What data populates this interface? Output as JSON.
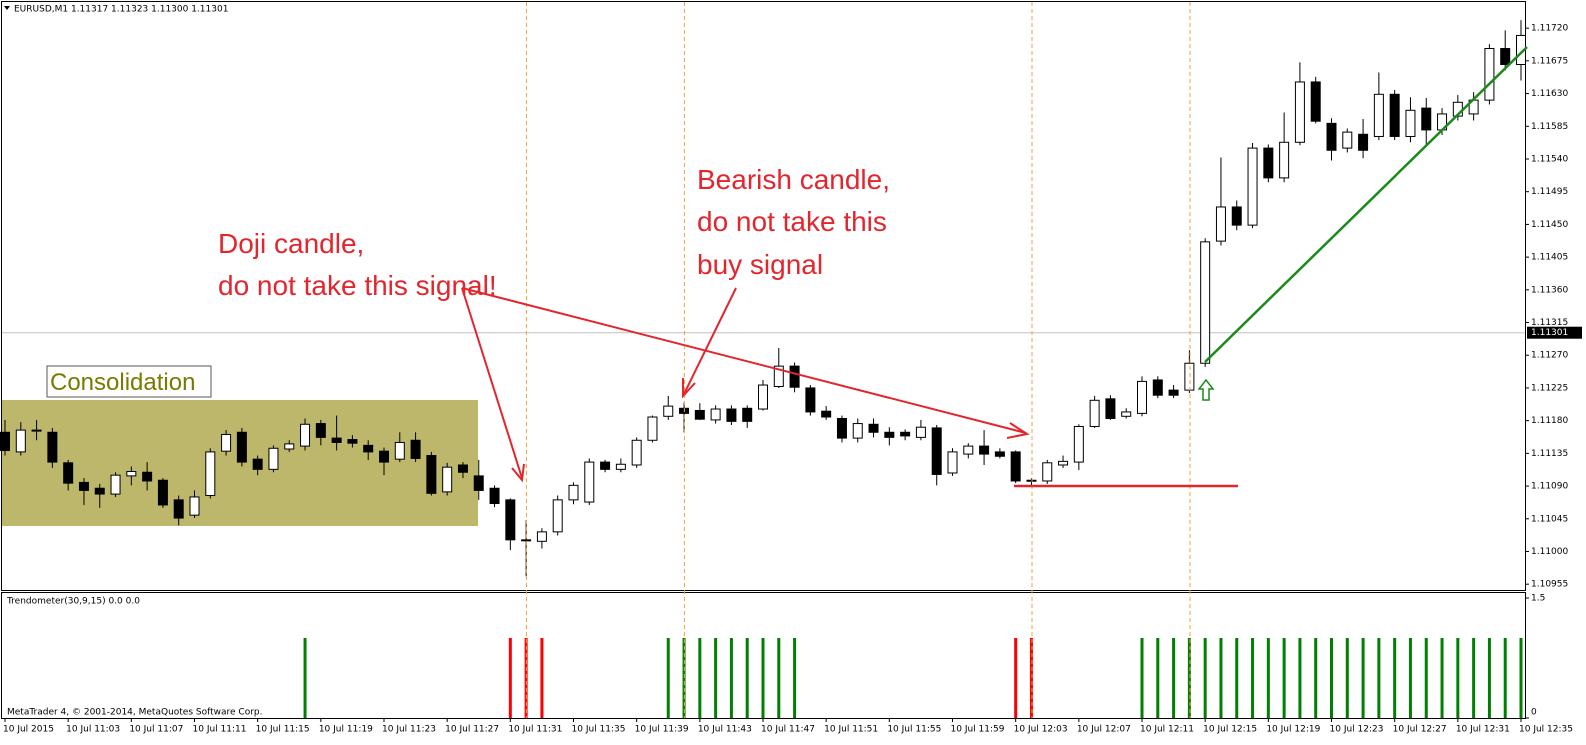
{
  "header": "EURUSD,M1  1.11317 1.11323 1.11300 1.11301",
  "footer": "MetaTrader 4, © 2001-2014, MetaQuotes Software Corp.",
  "annotations": {
    "consolidation": "Consolidation",
    "doji": [
      "Doji candle,",
      "do not take this signal!"
    ],
    "bearish": [
      "Bearish candle,",
      "do not take this",
      "buy signal"
    ]
  },
  "chart_data": [
    {
      "type": "candlestick",
      "up_color": "#ffffff",
      "down_color": "#000000",
      "wick_color": "#000000",
      "open": [
        1.11164,
        1.11137,
        1.11167,
        1.11164,
        1.11122,
        1.11095,
        1.11087,
        1.11079,
        1.11104,
        1.11109,
        1.11098,
        1.11071,
        1.1105,
        1.11077,
        1.11138,
        1.11164,
        1.11127,
        1.11113,
        1.11141,
        1.11145,
        1.11176,
        1.11156,
        1.11154,
        1.11146,
        1.11138,
        1.11127,
        1.11153,
        1.11132,
        1.11082,
        1.11119,
        1.11104,
        1.11087,
        1.11071,
        1.11016,
        1.11014,
        1.11027,
        1.11071,
        1.11068,
        1.11123,
        1.11113,
        1.11119,
        1.11153,
        1.11186,
        1.11197,
        1.11194,
        1.11181,
        1.11196,
        1.11197,
        1.11196,
        1.11227,
        1.11255,
        1.11225,
        1.11193,
        1.11183,
        1.11156,
        1.11175,
        1.11164,
        1.11164,
        1.11157,
        1.1117,
        1.11108,
        1.11134,
        1.11145,
        1.11137,
        1.11137,
        1.11097,
        1.11097,
        1.11119,
        1.11123,
        1.11172,
        1.1121,
        1.11186,
        1.1119,
        1.11236,
        1.11222,
        1.11222,
        1.11259,
        1.11427,
        1.11474,
        1.11449,
        1.11555,
        1.11514,
        1.11563,
        1.11646,
        1.11589,
        1.11555,
        1.11574,
        1.11571,
        1.11629,
        1.11571,
        1.1161,
        1.1158,
        1.11599,
        1.11602,
        1.11621,
        1.11692,
        1.1167
      ],
      "high": [
        1.11181,
        1.11178,
        1.11181,
        1.1117,
        1.11126,
        1.11101,
        1.11093,
        1.11109,
        1.11117,
        1.11123,
        1.11101,
        1.11077,
        1.11084,
        1.11142,
        1.11167,
        1.1117,
        1.11132,
        1.11146,
        1.11153,
        1.11183,
        1.11181,
        1.11187,
        1.1116,
        1.11153,
        1.11143,
        1.11164,
        1.11164,
        1.11137,
        1.11122,
        1.11123,
        1.11126,
        1.11091,
        1.11073,
        1.11043,
        1.11032,
        1.11077,
        1.11095,
        1.11128,
        1.11126,
        1.11128,
        1.11157,
        1.11187,
        1.11214,
        1.11205,
        1.11204,
        1.11201,
        1.11201,
        1.11201,
        1.11236,
        1.1128,
        1.1126,
        1.11229,
        1.112,
        1.11187,
        1.11183,
        1.11183,
        1.11171,
        1.11168,
        1.11181,
        1.11174,
        1.11142,
        1.11149,
        1.11167,
        1.11142,
        1.11139,
        1.11101,
        1.11126,
        1.11132,
        1.11175,
        1.11214,
        1.11215,
        1.11197,
        1.11241,
        1.11241,
        1.11229,
        1.11277,
        1.11431,
        1.11542,
        1.11483,
        1.11562,
        1.1156,
        1.11604,
        1.11673,
        1.11653,
        1.11596,
        1.11582,
        1.11595,
        1.11659,
        1.11635,
        1.11625,
        1.11624,
        1.1161,
        1.11628,
        1.11632,
        1.11698,
        1.11717,
        1.11731
      ],
      "low": [
        1.11132,
        1.11132,
        1.11153,
        1.11115,
        1.11084,
        1.11064,
        1.1106,
        1.11075,
        1.11091,
        1.11084,
        1.1106,
        1.11036,
        1.11046,
        1.11073,
        1.11132,
        1.11117,
        1.11105,
        1.11109,
        1.11137,
        1.11139,
        1.11146,
        1.11139,
        1.11143,
        1.11126,
        1.11105,
        1.11123,
        1.11123,
        1.11077,
        1.11077,
        1.11101,
        1.11071,
        1.11061,
        1.11002,
        1.10966,
        1.11004,
        1.11022,
        1.11065,
        1.11064,
        1.11109,
        1.11109,
        1.11115,
        1.1115,
        1.11181,
        1.11164,
        1.11181,
        1.11176,
        1.11174,
        1.1117,
        1.11194,
        1.11225,
        1.11219,
        1.11187,
        1.11181,
        1.1115,
        1.1115,
        1.11157,
        1.11146,
        1.11153,
        1.11153,
        1.11091,
        1.11104,
        1.11128,
        1.11119,
        1.11128,
        1.11094,
        1.1109,
        1.11093,
        1.11115,
        1.11112,
        1.1117,
        1.11181,
        1.11183,
        1.11186,
        1.11211,
        1.11211,
        1.11218,
        1.11254,
        1.11421,
        1.11442,
        1.11445,
        1.11508,
        1.11508,
        1.11559,
        1.11589,
        1.11538,
        1.11549,
        1.11541,
        1.11566,
        1.11566,
        1.11563,
        1.11559,
        1.11573,
        1.11593,
        1.11593,
        1.11615,
        1.11662,
        1.11648
      ],
      "close": [
        1.11139,
        1.11167,
        1.11166,
        1.11123,
        1.11094,
        1.11084,
        1.11079,
        1.11105,
        1.1111,
        1.11097,
        1.11064,
        1.11046,
        1.11075,
        1.11137,
        1.11161,
        1.11123,
        1.11113,
        1.11142,
        1.11148,
        1.11175,
        1.11157,
        1.1115,
        1.11149,
        1.11137,
        1.11123,
        1.1115,
        1.11128,
        1.1108,
        1.11116,
        1.11109,
        1.11084,
        1.11066,
        1.11016,
        1.11015,
        1.11027,
        1.11071,
        1.11091,
        1.11123,
        1.11113,
        1.1112,
        1.11153,
        1.11185,
        1.112,
        1.1119,
        1.11182,
        1.11196,
        1.11179,
        1.11179,
        1.11229,
        1.11255,
        1.11226,
        1.11192,
        1.11185,
        1.11156,
        1.11176,
        1.11164,
        1.11157,
        1.11159,
        1.11171,
        1.11106,
        1.11137,
        1.11145,
        1.11134,
        1.11131,
        1.11097,
        1.11098,
        1.11122,
        1.11124,
        1.11172,
        1.11208,
        1.11183,
        1.11192,
        1.11234,
        1.11215,
        1.11215,
        1.11259,
        1.11426,
        1.11474,
        1.11449,
        1.11555,
        1.11514,
        1.11563,
        1.11646,
        1.11592,
        1.11552,
        1.11577,
        1.11552,
        1.11629,
        1.11571,
        1.11607,
        1.1158,
        1.11602,
        1.11618,
        1.11621,
        1.11692,
        1.1167,
        1.1171
      ],
      "ylim": [
        1.10947,
        1.11756
      ],
      "yticks": [
        {
          "value": 1.1172,
          "label": "1.11720"
        },
        1.11675,
        {
          "value": 1.1163,
          "label": "1.11630"
        },
        1.11585,
        {
          "value": 1.1154,
          "label": "1.11540"
        },
        1.11495,
        {
          "value": 1.1145,
          "label": "1.11450"
        },
        1.11405,
        {
          "value": 1.1136,
          "label": "1.11360"
        },
        1.11315,
        {
          "value": 1.1127,
          "label": "1.11270"
        },
        1.11225,
        {
          "value": 1.1118,
          "label": "1.11180"
        },
        1.11135,
        {
          "value": 1.1109,
          "label": "1.11090"
        },
        1.11045,
        {
          "value": 1.11,
          "label": "1.11000"
        },
        1.10955
      ],
      "current_price": 1.11301,
      "current_price_color": "#c0c0c0"
    },
    {
      "type": "bar",
      "title": "Trendometer(30,9,15) 0.0 0.0",
      "categories": [
        "10 Jul 2015",
        null,
        null,
        null,
        "10 Jul 11:03",
        null,
        null,
        null,
        "10 Jul 11:07",
        null,
        null,
        null,
        "10 Jul 11:11",
        null,
        null,
        null,
        "10 Jul 11:15",
        null,
        null,
        null,
        "10 Jul 11:19",
        null,
        null,
        null,
        "10 Jul 11:23",
        null,
        null,
        null,
        "10 Jul 11:27",
        null,
        null,
        null,
        "10 Jul 11:31",
        null,
        null,
        null,
        "10 Jul 11:35",
        null,
        null,
        null,
        "10 Jul 11:39",
        null,
        null,
        null,
        "10 Jul 11:43",
        null,
        null,
        null,
        "10 Jul 11:47",
        null,
        null,
        null,
        "10 Jul 11:51",
        null,
        null,
        null,
        "10 Jul 11:55",
        null,
        null,
        null,
        "10 Jul 11:59",
        null,
        null,
        null,
        "10 Jul 12:03",
        null,
        null,
        null,
        "10 Jul 12:07",
        null,
        null,
        null,
        "10 Jul 12:11",
        null,
        null,
        null,
        "10 Jul 12:15",
        null,
        null,
        null,
        "10 Jul 12:19",
        null,
        null,
        null,
        "10 Jul 12:23",
        null,
        null,
        null,
        "10 Jul 12:27",
        null,
        null,
        null,
        "10 Jul 12:31",
        null,
        null,
        null,
        "10 Jul 12:35"
      ],
      "series": [
        {
          "color": "#008000",
          "values": [
            null,
            null,
            null,
            null,
            null,
            null,
            null,
            null,
            null,
            null,
            null,
            null,
            null,
            null,
            null,
            null,
            null,
            null,
            null,
            1,
            null,
            null,
            null,
            null,
            null,
            null,
            null,
            null,
            null,
            null,
            null,
            null,
            null,
            null,
            null,
            null,
            null,
            null,
            null,
            null,
            null,
            null,
            1,
            1,
            1,
            1,
            1,
            1,
            1,
            1,
            1,
            null,
            null,
            null,
            null,
            null,
            null,
            null,
            null,
            null,
            null,
            null,
            null,
            null,
            null,
            null,
            null,
            null,
            null,
            null,
            null,
            null,
            1,
            1,
            1,
            1,
            1,
            1,
            1,
            1,
            1,
            1,
            1,
            1,
            1,
            1,
            1,
            1,
            1,
            1,
            1,
            1,
            1,
            1,
            1,
            1,
            1
          ]
        },
        {
          "color": "#ff0000",
          "values": [
            null,
            null,
            null,
            null,
            null,
            null,
            null,
            null,
            null,
            null,
            null,
            null,
            null,
            null,
            null,
            null,
            null,
            null,
            null,
            null,
            null,
            null,
            null,
            null,
            null,
            null,
            null,
            null,
            null,
            null,
            null,
            null,
            1,
            1,
            1,
            null,
            null,
            null,
            null,
            null,
            null,
            null,
            null,
            null,
            null,
            null,
            null,
            null,
            null,
            null,
            null,
            null,
            null,
            null,
            null,
            null,
            null,
            null,
            null,
            null,
            null,
            null,
            null,
            null,
            1,
            1,
            null,
            null,
            null,
            null,
            null,
            null,
            null,
            null,
            null,
            null,
            null,
            null,
            null,
            null,
            null,
            null,
            null,
            null,
            null,
            null,
            null,
            null,
            null,
            null,
            null,
            null,
            null,
            null,
            null,
            null,
            null
          ]
        }
      ],
      "ylim": [
        0,
        1.5
      ],
      "yticks": [
        0,
        1.5
      ]
    }
  ]
}
